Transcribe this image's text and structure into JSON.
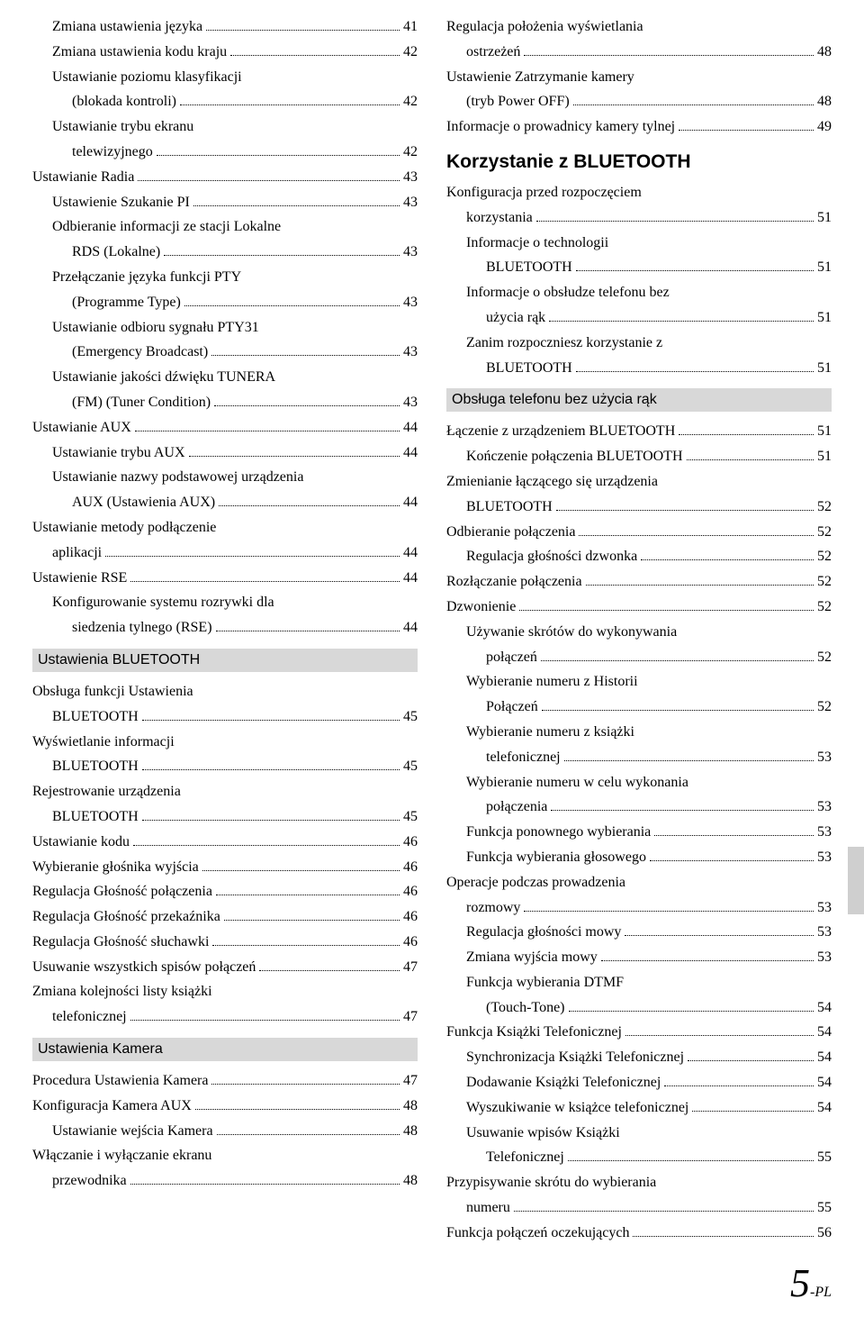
{
  "pageLabel": {
    "big": "5",
    "suffix": "-PL"
  },
  "left": [
    {
      "t": "entry",
      "ind": 1,
      "label": "Zmiana ustawienia języka",
      "page": "41"
    },
    {
      "t": "entry",
      "ind": 1,
      "label": "Zmiana ustawienia kodu kraju",
      "page": "42"
    },
    {
      "t": "entry-m",
      "ind": 1,
      "lines": [
        "Ustawianie poziomu klasyfikacji",
        "(blokada kontroli)"
      ],
      "page": "42",
      "contInd": 2
    },
    {
      "t": "entry-m",
      "ind": 1,
      "lines": [
        "Ustawianie trybu ekranu",
        "telewizyjnego"
      ],
      "page": "42",
      "contInd": 2
    },
    {
      "t": "entry",
      "ind": 0,
      "label": "Ustawianie Radia",
      "page": "43"
    },
    {
      "t": "entry",
      "ind": 1,
      "label": "Ustawienie Szukanie PI",
      "page": "43"
    },
    {
      "t": "entry-m",
      "ind": 1,
      "lines": [
        "Odbieranie informacji ze stacji Lokalne",
        "RDS (Lokalne)"
      ],
      "page": "43",
      "contInd": 2
    },
    {
      "t": "entry-m",
      "ind": 1,
      "lines": [
        "Przełączanie języka funkcji PTY",
        "(Programme Type)"
      ],
      "page": "43",
      "contInd": 2
    },
    {
      "t": "entry-m",
      "ind": 1,
      "lines": [
        "Ustawianie odbioru sygnału PTY31",
        "(Emergency Broadcast)"
      ],
      "page": "43",
      "contInd": 2
    },
    {
      "t": "entry-m",
      "ind": 1,
      "lines": [
        "Ustawianie jakości dźwięku TUNERA",
        "(FM) (Tuner Condition)"
      ],
      "page": "43",
      "contInd": 2
    },
    {
      "t": "entry",
      "ind": 0,
      "label": "Ustawianie AUX",
      "page": "44"
    },
    {
      "t": "entry",
      "ind": 1,
      "label": "Ustawianie trybu AUX",
      "page": "44"
    },
    {
      "t": "entry-m",
      "ind": 1,
      "lines": [
        "Ustawianie nazwy podstawowej urządzenia",
        "AUX (Ustawienia AUX)"
      ],
      "page": "44",
      "contInd": 2
    },
    {
      "t": "entry-m",
      "ind": 0,
      "lines": [
        "Ustawianie metody podłączenie",
        "aplikacji"
      ],
      "page": "44",
      "contInd": 1
    },
    {
      "t": "entry",
      "ind": 0,
      "label": "Ustawienie RSE",
      "page": "44"
    },
    {
      "t": "entry-m",
      "ind": 1,
      "lines": [
        "Konfigurowanie systemu rozrywki dla",
        "siedzenia tylnego (RSE)"
      ],
      "page": "44",
      "contInd": 2
    },
    {
      "t": "bar",
      "label": "Ustawienia BLUETOOTH"
    },
    {
      "t": "entry-m",
      "ind": 0,
      "lines": [
        "Obsługa funkcji Ustawienia",
        "BLUETOOTH"
      ],
      "page": "45",
      "contInd": 1
    },
    {
      "t": "entry-m",
      "ind": 0,
      "lines": [
        "Wyświetlanie informacji",
        "BLUETOOTH"
      ],
      "page": "45",
      "contInd": 1
    },
    {
      "t": "entry-m",
      "ind": 0,
      "lines": [
        "Rejestrowanie urządzenia",
        "BLUETOOTH"
      ],
      "page": "45",
      "contInd": 1
    },
    {
      "t": "entry",
      "ind": 0,
      "label": "Ustawianie kodu",
      "page": "46"
    },
    {
      "t": "entry",
      "ind": 0,
      "label": "Wybieranie głośnika wyjścia",
      "page": "46"
    },
    {
      "t": "entry",
      "ind": 0,
      "label": "Regulacja Głośność połączenia",
      "page": "46"
    },
    {
      "t": "entry",
      "ind": 0,
      "label": "Regulacja Głośność przekaźnika",
      "page": "46"
    },
    {
      "t": "entry",
      "ind": 0,
      "label": "Regulacja Głośność słuchawki",
      "page": "46"
    },
    {
      "t": "entry",
      "ind": 0,
      "label": "Usuwanie wszystkich spisów połączeń",
      "page": "47"
    },
    {
      "t": "entry-m",
      "ind": 0,
      "lines": [
        "Zmiana kolejności listy książki",
        "telefonicznej"
      ],
      "page": "47",
      "contInd": 1
    },
    {
      "t": "bar",
      "label": "Ustawienia Kamera"
    },
    {
      "t": "entry",
      "ind": 0,
      "label": "Procedura Ustawienia Kamera",
      "page": "47"
    },
    {
      "t": "entry",
      "ind": 0,
      "label": "Konfiguracja Kamera AUX",
      "page": "48"
    },
    {
      "t": "entry",
      "ind": 1,
      "label": "Ustawianie wejścia Kamera",
      "page": "48"
    },
    {
      "t": "entry-m",
      "ind": 0,
      "lines": [
        "Włączanie i wyłączanie ekranu",
        "przewodnika"
      ],
      "page": "48",
      "contInd": 1
    }
  ],
  "right": [
    {
      "t": "entry-m",
      "ind": 0,
      "lines": [
        "Regulacja położenia wyświetlania",
        "ostrzeżeń"
      ],
      "page": "48",
      "contInd": 1
    },
    {
      "t": "entry-m",
      "ind": 0,
      "lines": [
        "Ustawienie Zatrzymanie kamery",
        "(tryb Power OFF)"
      ],
      "page": "48",
      "contInd": 1
    },
    {
      "t": "entry",
      "ind": 0,
      "label": "Informacje o prowadnicy kamery tylnej",
      "page": "49"
    },
    {
      "t": "heading",
      "label": "Korzystanie z BLUETOOTH"
    },
    {
      "t": "entry-m",
      "ind": 0,
      "lines": [
        "Konfiguracja przed rozpoczęciem",
        "korzystania"
      ],
      "page": "51",
      "contInd": 1
    },
    {
      "t": "entry-m",
      "ind": 1,
      "lines": [
        "Informacje o technologii",
        "BLUETOOTH"
      ],
      "page": "51",
      "contInd": 2
    },
    {
      "t": "entry-m",
      "ind": 1,
      "lines": [
        "Informacje o obsłudze telefonu bez",
        "użycia rąk"
      ],
      "page": "51",
      "contInd": 2
    },
    {
      "t": "entry-m",
      "ind": 1,
      "lines": [
        "Zanim rozpoczniesz korzystanie z",
        "BLUETOOTH"
      ],
      "page": "51",
      "contInd": 2
    },
    {
      "t": "bar",
      "label": "Obsługa telefonu bez użycia rąk"
    },
    {
      "t": "entry",
      "ind": 0,
      "label": "Łączenie z urządzeniem BLUETOOTH",
      "page": "51"
    },
    {
      "t": "entry",
      "ind": 1,
      "label": "Kończenie połączenia BLUETOOTH",
      "page": "51"
    },
    {
      "t": "entry-m",
      "ind": 0,
      "lines": [
        "Zmienianie łączącego się urządzenia",
        "BLUETOOTH"
      ],
      "page": "52",
      "contInd": 1
    },
    {
      "t": "entry",
      "ind": 0,
      "label": "Odbieranie połączenia",
      "page": "52"
    },
    {
      "t": "entry",
      "ind": 1,
      "label": "Regulacja głośności dzwonka",
      "page": "52"
    },
    {
      "t": "entry",
      "ind": 0,
      "label": "Rozłączanie połączenia",
      "page": "52"
    },
    {
      "t": "entry",
      "ind": 0,
      "label": "Dzwonienie",
      "page": "52"
    },
    {
      "t": "entry-m",
      "ind": 1,
      "lines": [
        "Używanie skrótów do wykonywania",
        "połączeń"
      ],
      "page": "52",
      "contInd": 2
    },
    {
      "t": "entry-m",
      "ind": 1,
      "lines": [
        "Wybieranie numeru z Historii",
        "Połączeń"
      ],
      "page": "52",
      "contInd": 2
    },
    {
      "t": "entry-m",
      "ind": 1,
      "lines": [
        "Wybieranie numeru z książki",
        "telefonicznej"
      ],
      "page": "53",
      "contInd": 2
    },
    {
      "t": "entry-m",
      "ind": 1,
      "lines": [
        "Wybieranie numeru w celu wykonania",
        "połączenia"
      ],
      "page": "53",
      "contInd": 2
    },
    {
      "t": "entry",
      "ind": 1,
      "label": "Funkcja ponownego wybierania",
      "page": "53"
    },
    {
      "t": "entry",
      "ind": 1,
      "label": "Funkcja wybierania głosowego",
      "page": "53"
    },
    {
      "t": "entry-m",
      "ind": 0,
      "lines": [
        "Operacje podczas prowadzenia",
        "rozmowy"
      ],
      "page": "53",
      "contInd": 1
    },
    {
      "t": "entry",
      "ind": 1,
      "label": "Regulacja głośności mowy",
      "page": "53"
    },
    {
      "t": "entry",
      "ind": 1,
      "label": "Zmiana wyjścia mowy",
      "page": "53"
    },
    {
      "t": "entry-m",
      "ind": 1,
      "lines": [
        "Funkcja wybierania DTMF",
        "(Touch-Tone)"
      ],
      "page": "54",
      "contInd": 2
    },
    {
      "t": "entry",
      "ind": 0,
      "label": "Funkcja Książki Telefonicznej",
      "page": "54"
    },
    {
      "t": "entry",
      "ind": 1,
      "label": "Synchronizacja Książki Telefonicznej",
      "page": "54"
    },
    {
      "t": "entry",
      "ind": 1,
      "label": "Dodawanie Książki Telefonicznej",
      "page": "54"
    },
    {
      "t": "entry",
      "ind": 1,
      "label": "Wyszukiwanie w książce telefonicznej",
      "page": "54"
    },
    {
      "t": "entry-m",
      "ind": 1,
      "lines": [
        "Usuwanie wpisów Książki",
        "Telefonicznej"
      ],
      "page": "55",
      "contInd": 2
    },
    {
      "t": "entry-m",
      "ind": 0,
      "lines": [
        "Przypisywanie skrótu do wybierania",
        "numeru"
      ],
      "page": "55",
      "contInd": 1
    },
    {
      "t": "entry",
      "ind": 0,
      "label": "Funkcja połączeń oczekujących",
      "page": "56"
    }
  ]
}
